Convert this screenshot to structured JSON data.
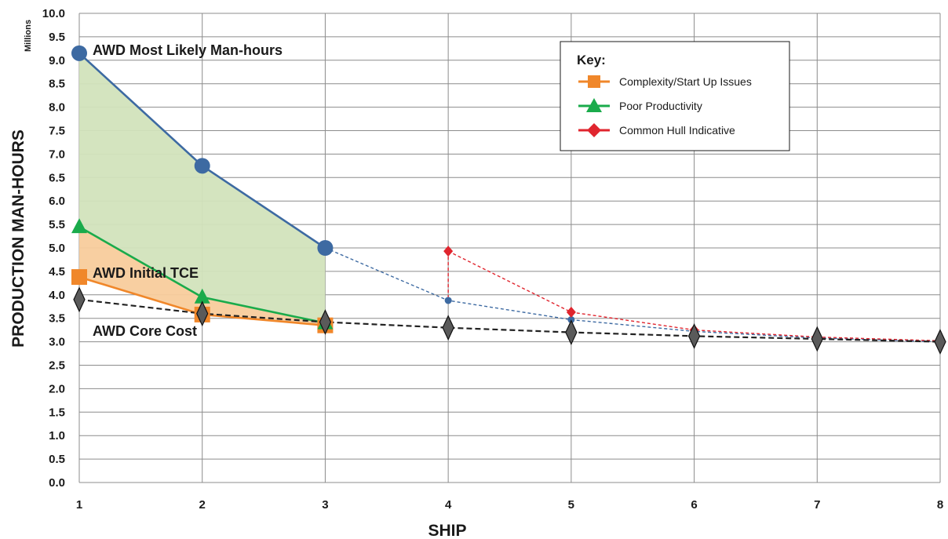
{
  "chart_data": {
    "type": "line",
    "xlabel": "SHIP",
    "ylabel": "PRODUCTION MAN-HOURS",
    "y_unit_label": "Millions",
    "x": [
      1,
      2,
      3,
      4,
      5,
      6,
      7,
      8
    ],
    "xlim": [
      1,
      8
    ],
    "ylim": [
      0,
      10
    ],
    "y_tick_step": 0.5,
    "grid": true,
    "legend_title": "Key:",
    "legend_position": "top-right",
    "series": [
      {
        "key": "most_likely",
        "x": [
          1,
          2,
          3
        ],
        "values": [
          9.15,
          6.75,
          5.0
        ],
        "color": "#3d6aa2",
        "marker": "circle",
        "line": "solid"
      },
      {
        "key": "most_likely_proj",
        "x": [
          3,
          4,
          5,
          6,
          7,
          8
        ],
        "values": [
          5.0,
          3.88,
          3.47,
          3.22,
          3.08,
          3.0
        ],
        "color": "#3d6aa2",
        "marker": "small-circle",
        "line": "dashed"
      },
      {
        "key": "poor_productivity",
        "name": "Poor Productivity",
        "x": [
          1,
          2,
          3
        ],
        "values": [
          5.45,
          3.95,
          3.4
        ],
        "color": "#1aab4b",
        "marker": "triangle",
        "line": "solid"
      },
      {
        "key": "complexity",
        "name": "Complexity/Start Up Issues",
        "x": [
          1,
          2,
          3
        ],
        "values": [
          4.38,
          3.58,
          3.35
        ],
        "color": "#f0872a",
        "marker": "square",
        "line": "solid"
      },
      {
        "key": "common_hull",
        "name": "Common Hull Indicative",
        "x": [
          4,
          5,
          6,
          7,
          8
        ],
        "values": [
          4.93,
          3.63,
          3.25,
          3.1,
          3.02
        ],
        "color": "#e0252e",
        "marker": "diamond",
        "line": "dashed"
      },
      {
        "key": "core_cost",
        "x": [
          1,
          2,
          3,
          4,
          5,
          6,
          7,
          8
        ],
        "values": [
          3.9,
          3.6,
          3.42,
          3.3,
          3.2,
          3.12,
          3.06,
          3.0
        ],
        "color": "#222222",
        "marker": "dark-diamond",
        "line": "dashed"
      }
    ],
    "annotations": [
      {
        "text": "AWD Most Likely Man-hours",
        "x": 1,
        "y": 9.15
      },
      {
        "text": "AWD Initial TCE",
        "x": 1,
        "y": 4.38
      },
      {
        "text": "AWD Core Cost",
        "x": 1,
        "y": 3.9
      }
    ]
  }
}
